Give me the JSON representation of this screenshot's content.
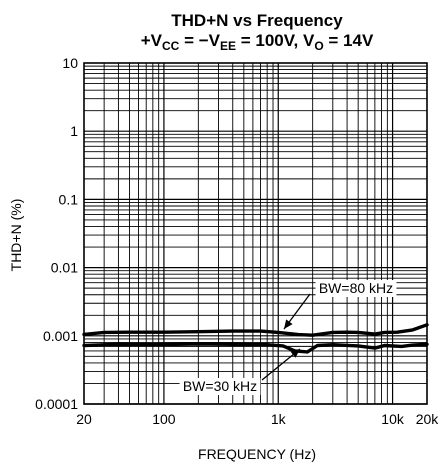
{
  "chart_data": {
    "type": "line",
    "title": "THD+N vs Frequency",
    "subtitle": {
      "p1": "+V",
      "s1": "CC",
      "p2": " = −V",
      "s2": "EE",
      "p3": " = 100V, V",
      "s3": "O",
      "p4": " = 14V"
    },
    "xlabel": "FREQUENCY (Hz)",
    "ylabel": "THD+N (%)",
    "x_scale": "log",
    "y_scale": "log",
    "xlim": [
      20,
      20000
    ],
    "ylim": [
      0.0001,
      10
    ],
    "x_ticks": [
      {
        "value": 20,
        "label": "20"
      },
      {
        "value": 100,
        "label": "100"
      },
      {
        "value": 1000,
        "label": "1k"
      },
      {
        "value": 10000,
        "label": "10k"
      },
      {
        "value": 20000,
        "label": "20k"
      }
    ],
    "y_ticks": [
      {
        "value": 10,
        "label": "10"
      },
      {
        "value": 1,
        "label": "1"
      },
      {
        "value": 0.1,
        "label": "0.1"
      },
      {
        "value": 0.01,
        "label": "0.01"
      },
      {
        "value": 0.001,
        "label": "0.001"
      },
      {
        "value": 0.0001,
        "label": "0.0001"
      }
    ],
    "grid": true,
    "series": [
      {
        "name": "BW=80 kHz",
        "color": "#000000",
        "points": [
          [
            20,
            0.00105
          ],
          [
            30,
            0.00112
          ],
          [
            50,
            0.00113
          ],
          [
            100,
            0.00113
          ],
          [
            200,
            0.00115
          ],
          [
            400,
            0.00117
          ],
          [
            700,
            0.00117
          ],
          [
            1000,
            0.00112
          ],
          [
            1500,
            0.00104
          ],
          [
            2000,
            0.00102
          ],
          [
            3000,
            0.00112
          ],
          [
            4000,
            0.00113
          ],
          [
            5000,
            0.00112
          ],
          [
            7000,
            0.00106
          ],
          [
            8500,
            0.00112
          ],
          [
            11000,
            0.00113
          ],
          [
            15000,
            0.00122
          ],
          [
            20000,
            0.00145
          ]
        ]
      },
      {
        "name": "BW=30 kHz",
        "color": "#000000",
        "points": [
          [
            20,
            0.00072
          ],
          [
            40,
            0.00075
          ],
          [
            80,
            0.00074
          ],
          [
            200,
            0.00076
          ],
          [
            400,
            0.00075
          ],
          [
            800,
            0.00074
          ],
          [
            1100,
            0.00071
          ],
          [
            1400,
            0.0006
          ],
          [
            1800,
            0.00058
          ],
          [
            2200,
            0.00072
          ],
          [
            3000,
            0.00074
          ],
          [
            5000,
            0.00071
          ],
          [
            7000,
            0.00066
          ],
          [
            8500,
            0.00072
          ],
          [
            12000,
            0.0007
          ],
          [
            15000,
            0.00073
          ],
          [
            20000,
            0.00075
          ]
        ]
      }
    ],
    "annotations": [
      {
        "text": "BW=80 kHz",
        "series": "BW=80 kHz"
      },
      {
        "text": "BW=30 kHz",
        "series": "BW=30 kHz"
      }
    ]
  }
}
